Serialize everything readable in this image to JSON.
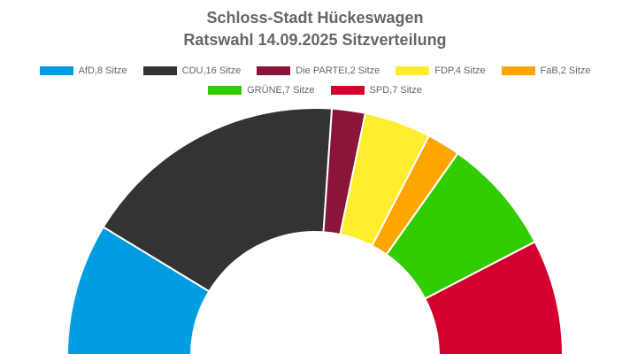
{
  "chart_data": {
    "type": "pie",
    "variant": "semicircle",
    "title": "Schloss-Stadt Hückeswagen",
    "subtitle": "Ratswahl 14.09.2025 Sitzverteilung",
    "categories": [
      "AfD",
      "CDU",
      "Die PARTEI",
      "FDP",
      "FaB",
      "GRÜNE",
      "SPD"
    ],
    "values": [
      8,
      16,
      2,
      4,
      2,
      7,
      7
    ],
    "colors": [
      "#009ee0",
      "#333333",
      "#8b1538",
      "#ffed2e",
      "#ffa500",
      "#32cd00",
      "#d4002d"
    ],
    "legend_labels": [
      "AfD,8 Sitze",
      "CDU,16 Sitze",
      "Die PARTEI,2 Sitze",
      "FDP,4 Sitze",
      "FaB,2 Sitze",
      "GRÜNE,7 Sitze",
      "SPD,7 Sitze"
    ],
    "legend": "top"
  }
}
